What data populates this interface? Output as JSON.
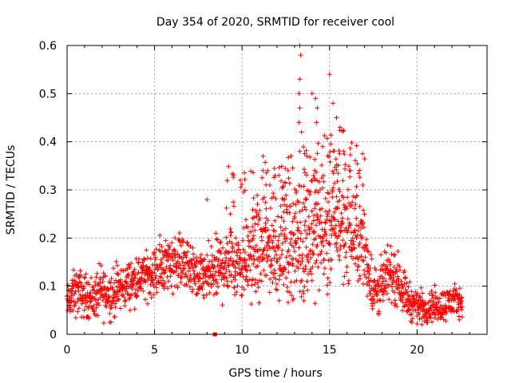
{
  "chart_data": {
    "type": "scatter",
    "title": "Day 354 of 2020, SRMTID for receiver cool",
    "xlabel": "GPS time / hours",
    "ylabel": "SRMTID / TECUs",
    "xlim": [
      0,
      24
    ],
    "ylim": [
      0,
      0.6
    ],
    "xticks": [
      0,
      5,
      10,
      15,
      20
    ],
    "yticks": [
      0,
      0.1,
      0.2,
      0.3,
      0.4,
      0.5,
      0.6
    ],
    "xtick_labels": [
      "0",
      "5",
      "10",
      "15",
      "20"
    ],
    "ytick_labels": [
      "0",
      "0.1",
      "0.2",
      "0.3",
      "0.4",
      "0.5",
      "0.6"
    ],
    "grid": true,
    "marker": "+",
    "color": "#ff0000",
    "outlier_marker": {
      "x": 8.45,
      "y": 0.0,
      "shape": "square"
    },
    "envelope": [
      {
        "x": 0.0,
        "median": 0.065,
        "spread": 0.03
      },
      {
        "x": 0.5,
        "median": 0.09,
        "spread": 0.045
      },
      {
        "x": 1.0,
        "median": 0.08,
        "spread": 0.04
      },
      {
        "x": 1.5,
        "median": 0.075,
        "spread": 0.04
      },
      {
        "x": 2.0,
        "median": 0.09,
        "spread": 0.05
      },
      {
        "x": 2.5,
        "median": 0.08,
        "spread": 0.045
      },
      {
        "x": 3.0,
        "median": 0.095,
        "spread": 0.045
      },
      {
        "x": 3.5,
        "median": 0.105,
        "spread": 0.04
      },
      {
        "x": 4.0,
        "median": 0.115,
        "spread": 0.04
      },
      {
        "x": 4.5,
        "median": 0.12,
        "spread": 0.04
      },
      {
        "x": 5.0,
        "median": 0.13,
        "spread": 0.045
      },
      {
        "x": 5.5,
        "median": 0.145,
        "spread": 0.05
      },
      {
        "x": 6.0,
        "median": 0.15,
        "spread": 0.05
      },
      {
        "x": 6.5,
        "median": 0.155,
        "spread": 0.05
      },
      {
        "x": 7.0,
        "median": 0.14,
        "spread": 0.05
      },
      {
        "x": 7.5,
        "median": 0.115,
        "spread": 0.04
      },
      {
        "x": 8.0,
        "median": 0.12,
        "spread": 0.05
      },
      {
        "x": 8.5,
        "median": 0.13,
        "spread": 0.06
      },
      {
        "x": 9.0,
        "median": 0.15,
        "spread": 0.07
      },
      {
        "x": 9.5,
        "median": 0.16,
        "spread": 0.07
      },
      {
        "x": 10.0,
        "median": 0.15,
        "spread": 0.07
      },
      {
        "x": 10.5,
        "median": 0.16,
        "spread": 0.07
      },
      {
        "x": 11.0,
        "median": 0.17,
        "spread": 0.08
      },
      {
        "x": 11.5,
        "median": 0.18,
        "spread": 0.08
      },
      {
        "x": 12.0,
        "median": 0.17,
        "spread": 0.08
      },
      {
        "x": 12.5,
        "median": 0.175,
        "spread": 0.09
      },
      {
        "x": 13.0,
        "median": 0.18,
        "spread": 0.09
      },
      {
        "x": 13.5,
        "median": 0.19,
        "spread": 0.11
      },
      {
        "x": 14.0,
        "median": 0.2,
        "spread": 0.1
      },
      {
        "x": 14.5,
        "median": 0.21,
        "spread": 0.1
      },
      {
        "x": 15.0,
        "median": 0.22,
        "spread": 0.11
      },
      {
        "x": 15.5,
        "median": 0.23,
        "spread": 0.1
      },
      {
        "x": 16.0,
        "median": 0.22,
        "spread": 0.09
      },
      {
        "x": 16.5,
        "median": 0.2,
        "spread": 0.08
      },
      {
        "x": 17.0,
        "median": 0.18,
        "spread": 0.07
      },
      {
        "x": 17.5,
        "median": 0.09,
        "spread": 0.05
      },
      {
        "x": 18.0,
        "median": 0.1,
        "spread": 0.05
      },
      {
        "x": 18.5,
        "median": 0.13,
        "spread": 0.05
      },
      {
        "x": 19.0,
        "median": 0.11,
        "spread": 0.045
      },
      {
        "x": 19.5,
        "median": 0.07,
        "spread": 0.035
      },
      {
        "x": 20.0,
        "median": 0.06,
        "spread": 0.03
      },
      {
        "x": 20.5,
        "median": 0.055,
        "spread": 0.03
      },
      {
        "x": 21.0,
        "median": 0.06,
        "spread": 0.03
      },
      {
        "x": 21.5,
        "median": 0.06,
        "spread": 0.03
      },
      {
        "x": 22.0,
        "median": 0.07,
        "spread": 0.03
      },
      {
        "x": 22.6,
        "median": 0.07,
        "spread": 0.025
      }
    ],
    "peaks": [
      {
        "x": 8.0,
        "y": 0.28
      },
      {
        "x": 9.9,
        "y": 0.32
      },
      {
        "x": 11.2,
        "y": 0.37
      },
      {
        "x": 12.1,
        "y": 0.33
      },
      {
        "x": 12.8,
        "y": 0.37
      },
      {
        "x": 13.3,
        "y": 0.6
      },
      {
        "x": 13.35,
        "y": 0.58
      },
      {
        "x": 13.3,
        "y": 0.53
      },
      {
        "x": 13.25,
        "y": 0.5
      },
      {
        "x": 13.3,
        "y": 0.47
      },
      {
        "x": 13.25,
        "y": 0.44
      },
      {
        "x": 13.4,
        "y": 0.42
      },
      {
        "x": 13.3,
        "y": 0.38
      },
      {
        "x": 13.7,
        "y": 0.37
      },
      {
        "x": 14.2,
        "y": 0.49
      },
      {
        "x": 14.25,
        "y": 0.44
      },
      {
        "x": 14.3,
        "y": 0.47
      },
      {
        "x": 14.0,
        "y": 0.5
      },
      {
        "x": 14.6,
        "y": 0.39
      },
      {
        "x": 15.0,
        "y": 0.54
      },
      {
        "x": 15.2,
        "y": 0.48
      },
      {
        "x": 15.4,
        "y": 0.45
      },
      {
        "x": 15.6,
        "y": 0.43
      },
      {
        "x": 15.8,
        "y": 0.38
      },
      {
        "x": 16.2,
        "y": 0.34
      },
      {
        "x": 16.9,
        "y": 0.31
      }
    ]
  }
}
